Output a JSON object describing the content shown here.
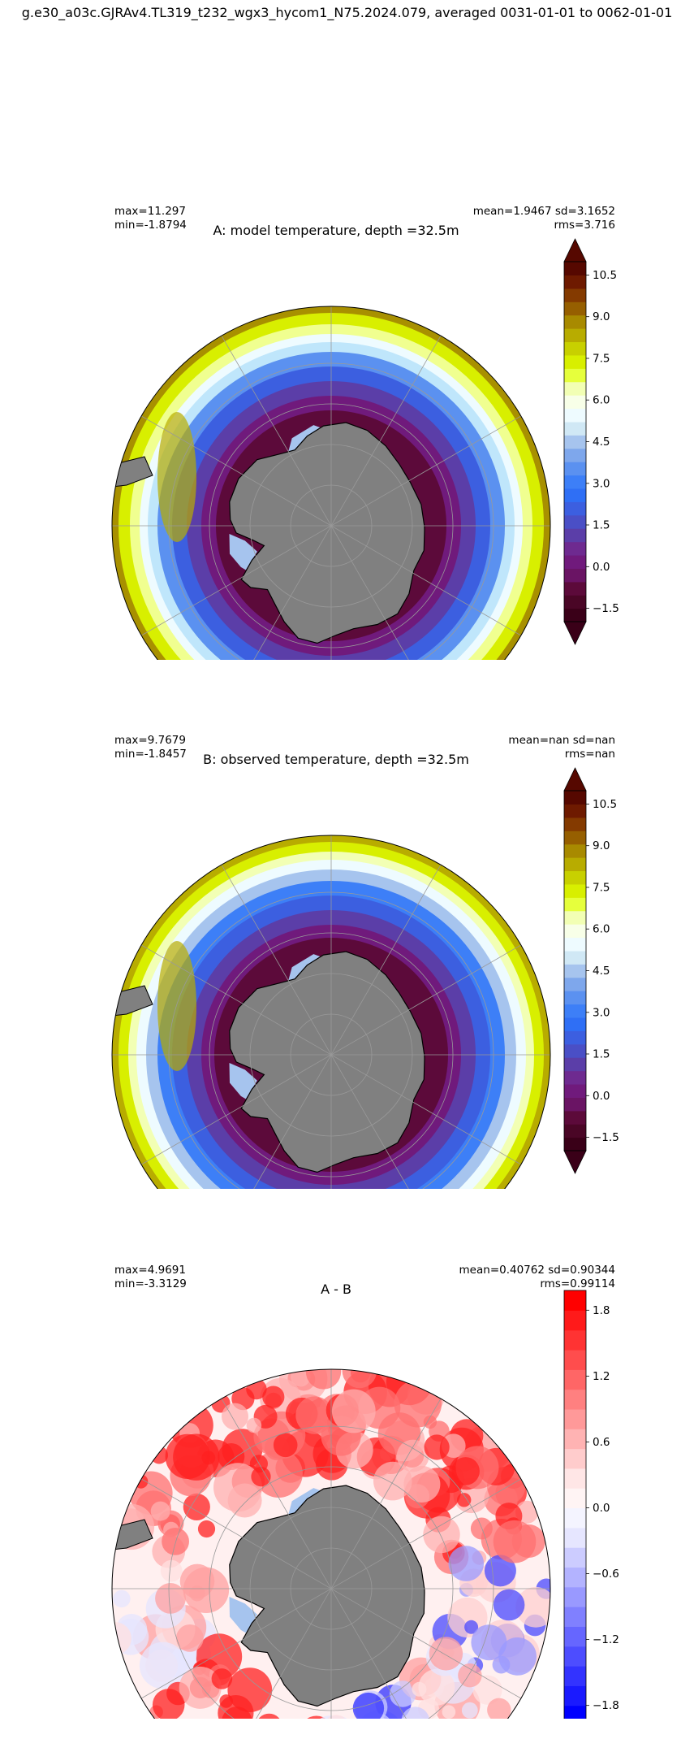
{
  "suptitle": "g.e30_a03c.GJRAv4.TL319_t232_wgx3_hycom1_N75.2024.079, averaged 0031-01-01 to 0062-01-01",
  "panels": [
    {
      "title": "A: model temperature, depth =32.5m",
      "stats_left": [
        "max=11.297",
        "min=-1.8794"
      ],
      "stats_right": [
        "mean=1.9467 sd=3.1652",
        "rms=3.716"
      ],
      "colorbar": {
        "ticks": [
          "10.5",
          "9.0",
          "7.5",
          "6.0",
          "4.5",
          "3.0",
          "1.5",
          "0.0",
          "−1.5"
        ],
        "extend": "both",
        "colors": [
          "#3a0018",
          "#4a0626",
          "#5c0a3a",
          "#6a1464",
          "#701a7c",
          "#6e2a90",
          "#5b3ea8",
          "#4a4fc6",
          "#3c5fe0",
          "#2f6ff5",
          "#3d7ff7",
          "#5b91f0",
          "#7ea7ec",
          "#a6c4ee",
          "#d0e8f5",
          "#eefbff",
          "#f8ffe8",
          "#f2ffb4",
          "#e6ff3c",
          "#d8ef00",
          "#c8d000",
          "#b8ac00",
          "#a88a00",
          "#965f00",
          "#843a00",
          "#6e1a00",
          "#560800"
        ]
      },
      "map_style": "model"
    },
    {
      "title": "B: observed temperature, depth =32.5m",
      "stats_left": [
        "max=9.7679",
        "min=-1.8457"
      ],
      "stats_right": [
        "mean=nan sd=nan",
        "rms=nan"
      ],
      "colorbar": {
        "ticks": [
          "10.5",
          "9.0",
          "7.5",
          "6.0",
          "4.5",
          "3.0",
          "1.5",
          "0.0",
          "−1.5"
        ],
        "extend": "both",
        "colors": [
          "#3a0018",
          "#4a0626",
          "#5c0a3a",
          "#6a1464",
          "#701a7c",
          "#6e2a90",
          "#5b3ea8",
          "#4a4fc6",
          "#3c5fe0",
          "#2f6ff5",
          "#3d7ff7",
          "#5b91f0",
          "#7ea7ec",
          "#a6c4ee",
          "#d0e8f5",
          "#eefbff",
          "#f8ffe8",
          "#f2ffb4",
          "#e6ff3c",
          "#d8ef00",
          "#c8d000",
          "#b8ac00",
          "#a88a00",
          "#965f00",
          "#843a00",
          "#6e1a00",
          "#560800"
        ]
      },
      "map_style": "obs"
    },
    {
      "title": "A - B",
      "stats_left": [
        "max=4.9691",
        "min=-3.3129"
      ],
      "stats_right": [
        "mean=0.40762 sd=0.90344",
        "rms=0.99114"
      ],
      "colorbar": {
        "ticks": [
          "1.8",
          "1.2",
          "0.6",
          "0.0",
          "−0.6",
          "−1.2",
          "−1.8"
        ],
        "extend": "neither",
        "colors": [
          "#0000ff",
          "#1a1aff",
          "#3333ff",
          "#4d4dff",
          "#6666ff",
          "#8080ff",
          "#9999ff",
          "#b3b3ff",
          "#ccccff",
          "#e6e6ff",
          "#f4f4ff",
          "#fff4f4",
          "#ffe6e6",
          "#ffcccc",
          "#ffb3b3",
          "#ff9999",
          "#ff8080",
          "#ff6666",
          "#ff4d4d",
          "#ff3333",
          "#ff1a1a",
          "#ff0000"
        ]
      },
      "map_style": "diff"
    }
  ]
}
